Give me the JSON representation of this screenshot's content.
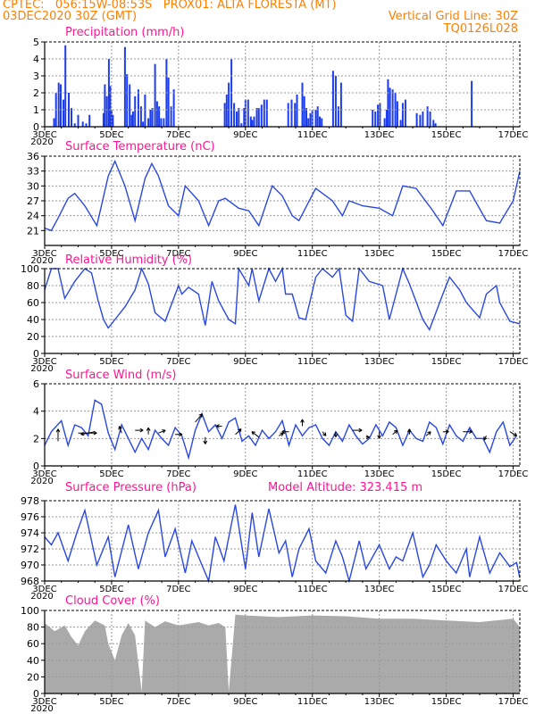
{
  "header": {
    "line1": "CPTEC:   056:15W-08:53S   PROX01: ALTA FLORESTA (MT)",
    "line2": "03DEC2020 30Z (GMT)",
    "grid_note": "Vertical Grid Line: 30Z",
    "code": "TQ0126L028"
  },
  "colors": {
    "header": "#ff7f00",
    "title": "#ff1493",
    "line": "#2a48e0",
    "bar": "#1c3cf0",
    "cloud": "#aaaaaa",
    "grid": "#999999",
    "axis": "#000000"
  },
  "x_tick_labels": [
    "3DEC",
    "5DEC",
    "7DEC",
    "9DEC",
    "11DEC",
    "13DEC",
    "15DEC",
    "17DEC"
  ],
  "overlap_label": "2020",
  "chart_data": [
    {
      "type": "bar",
      "title": "Precipitation (mm/h)",
      "ylim": [
        0,
        5
      ],
      "y_ticks": [
        "0",
        "1",
        "2",
        "3",
        "4",
        "5"
      ],
      "x": [
        0.14,
        0.17,
        0.21,
        0.24,
        0.28,
        0.31,
        0.36,
        0.4,
        0.45,
        0.5,
        0.57,
        0.62,
        0.67,
        0.88,
        0.9,
        0.93,
        0.96,
        0.98,
        1.0,
        1.02,
        1.2,
        1.23,
        1.27,
        1.3,
        1.32,
        1.35,
        1.4,
        1.44,
        1.47,
        1.5,
        1.55,
        1.58,
        1.61,
        1.65,
        1.68,
        1.71,
        1.74,
        1.78,
        1.82,
        1.85,
        1.89,
        1.93,
        2.69,
        2.72,
        2.75,
        2.79,
        2.83,
        2.87,
        2.9,
        2.94,
        2.98,
        3.0,
        3.04,
        3.08,
        3.1,
        3.13,
        3.17,
        3.2,
        3.24,
        3.28,
        3.32,
        3.64,
        3.69,
        3.74,
        3.77,
        3.85,
        3.88,
        3.91,
        3.94,
        3.97,
        4.0,
        4.05,
        4.08,
        4.11,
        4.14,
        4.31,
        4.35,
        4.39,
        4.43,
        4.9,
        4.94,
        4.98,
        5.01,
        5.08,
        5.11,
        5.13,
        5.16,
        5.2,
        5.24,
        5.27,
        5.32,
        5.35,
        5.39,
        5.56,
        5.61,
        5.65,
        5.72,
        5.76,
        5.81,
        5.84,
        6.38
      ],
      "values": [
        0.5,
        2.0,
        2.6,
        2.5,
        1.6,
        4.8,
        2.0,
        1.1,
        0.2,
        0.7,
        0.3,
        0.2,
        0.7,
        0.8,
        2.5,
        1.8,
        4.0,
        2.4,
        1.0,
        0.7,
        4.7,
        3.1,
        2.5,
        0.7,
        0.9,
        1.8,
        2.2,
        1.2,
        0.3,
        1.9,
        0.5,
        1.0,
        1.1,
        3.7,
        1.5,
        1.2,
        0.5,
        0.5,
        4.0,
        2.9,
        1.2,
        2.2,
        1.4,
        1.9,
        2.6,
        4.0,
        1.4,
        0.9,
        1.1,
        0.2,
        1.1,
        1.6,
        1.6,
        0.6,
        0.4,
        0.6,
        1.1,
        1.1,
        1.3,
        1.6,
        1.6,
        1.4,
        1.6,
        1.4,
        1.9,
        2.6,
        1.8,
        1.1,
        0.5,
        0.8,
        1.0,
        1.0,
        1.2,
        0.6,
        0.5,
        3.3,
        3.0,
        1.2,
        2.6,
        1.0,
        0.9,
        1.3,
        1.4,
        0.5,
        1.0,
        2.8,
        2.3,
        2.2,
        2.0,
        1.5,
        0.4,
        1.4,
        1.6,
        0.8,
        0.7,
        0.9,
        1.2,
        0.9,
        0.4,
        0.2,
        2.7
      ]
    },
    {
      "type": "line",
      "title": "Surface Temperature (nC)",
      "ylim": [
        18,
        36
      ],
      "y_ticks": [
        "21",
        "24",
        "27",
        "30",
        "33",
        "36"
      ],
      "x": [
        0.0,
        0.1,
        0.2,
        0.35,
        0.45,
        0.6,
        0.78,
        0.95,
        1.05,
        1.2,
        1.35,
        1.5,
        1.6,
        1.7,
        1.85,
        2.0,
        2.1,
        2.3,
        2.45,
        2.6,
        2.7,
        2.9,
        3.05,
        3.2,
        3.4,
        3.55,
        3.7,
        3.8,
        4.05,
        4.3,
        4.45,
        4.55,
        4.75,
        5.0,
        5.2,
        5.35,
        5.55,
        5.8,
        5.95,
        6.15,
        6.35,
        6.6,
        6.8,
        7.0,
        7.1
      ],
      "values": [
        21.5,
        21,
        23.5,
        27.5,
        28.5,
        26,
        22,
        32,
        35,
        30,
        23,
        31.5,
        34.5,
        32,
        26,
        24,
        30,
        27,
        22,
        27,
        27.5,
        25.5,
        25,
        22,
        30,
        28,
        24,
        23,
        29.5,
        27,
        24,
        27,
        26,
        25.5,
        24,
        30,
        29.5,
        25,
        22,
        29,
        29,
        23,
        22.5,
        27,
        33
      ]
    },
    {
      "type": "line",
      "title": "Relative Humidity (%)",
      "ylim": [
        0,
        100
      ],
      "y_ticks": [
        "0",
        "20",
        "40",
        "60",
        "80",
        "100"
      ],
      "x": [
        0.0,
        0.1,
        0.2,
        0.3,
        0.45,
        0.6,
        0.7,
        0.8,
        0.88,
        0.95,
        1.05,
        1.2,
        1.35,
        1.45,
        1.55,
        1.65,
        1.8,
        2.0,
        2.05,
        2.15,
        2.3,
        2.4,
        2.5,
        2.6,
        2.75,
        2.85,
        2.9,
        3.05,
        3.1,
        3.2,
        3.35,
        3.45,
        3.55,
        3.6,
        3.7,
        3.8,
        3.9,
        4.05,
        4.15,
        4.3,
        4.4,
        4.5,
        4.6,
        4.7,
        4.85,
        5.05,
        5.15,
        5.35,
        5.45,
        5.65,
        5.75,
        5.95,
        6.05,
        6.2,
        6.3,
        6.5,
        6.6,
        6.75,
        6.8,
        6.95,
        7.1
      ],
      "values": [
        75,
        100,
        100,
        65,
        85,
        100,
        95,
        62,
        40,
        30,
        40,
        55,
        75,
        100,
        82,
        48,
        38,
        80,
        70,
        78,
        70,
        33,
        85,
        62,
        40,
        35,
        100,
        80,
        100,
        62,
        100,
        85,
        100,
        70,
        70,
        42,
        40,
        90,
        100,
        90,
        100,
        45,
        38,
        100,
        85,
        80,
        40,
        100,
        82,
        40,
        28,
        70,
        90,
        75,
        60,
        42,
        70,
        80,
        60,
        38,
        35
      ]
    },
    {
      "type": "line",
      "title": "Surface Wind (m/s)",
      "ylim": [
        0,
        6
      ],
      "y_ticks": [
        "0",
        "2",
        "4",
        "6"
      ],
      "x": [
        0.0,
        0.1,
        0.25,
        0.35,
        0.45,
        0.55,
        0.65,
        0.75,
        0.85,
        0.95,
        1.05,
        1.15,
        1.25,
        1.35,
        1.45,
        1.55,
        1.65,
        1.75,
        1.85,
        1.95,
        2.05,
        2.15,
        2.25,
        2.35,
        2.45,
        2.55,
        2.65,
        2.75,
        2.85,
        2.95,
        3.05,
        3.15,
        3.25,
        3.35,
        3.45,
        3.55,
        3.65,
        3.75,
        3.85,
        3.95,
        4.05,
        4.15,
        4.25,
        4.35,
        4.45,
        4.55,
        4.65,
        4.75,
        4.85,
        4.95,
        5.05,
        5.15,
        5.25,
        5.35,
        5.45,
        5.55,
        5.65,
        5.75,
        5.85,
        5.95,
        6.05,
        6.15,
        6.25,
        6.35,
        6.45,
        6.55,
        6.65,
        6.75,
        6.85,
        6.95,
        7.05
      ],
      "values": [
        1.5,
        2.5,
        3.3,
        1.5,
        3.0,
        2.8,
        2.2,
        4.8,
        4.5,
        2.4,
        1.2,
        3.0,
        2.0,
        1.0,
        2.0,
        1.2,
        2.6,
        2.0,
        1.5,
        2.8,
        2.2,
        0.6,
        2.6,
        3.8,
        2.5,
        3.0,
        2.0,
        3.2,
        3.5,
        1.8,
        2.2,
        1.5,
        2.6,
        2.0,
        2.5,
        3.3,
        1.5,
        3.0,
        2.2,
        2.8,
        3.0,
        2.0,
        1.5,
        2.5,
        1.8,
        3.0,
        2.2,
        1.6,
        2.0,
        3.0,
        2.2,
        3.2,
        2.8,
        1.5,
        2.6,
        2.0,
        1.8,
        3.2,
        2.8,
        1.6,
        3.0,
        2.2,
        1.8,
        2.8,
        2.0,
        2.0,
        1.0,
        2.5,
        3.2,
        1.5,
        2.2
      ],
      "arrows": [
        {
          "x": 0.2,
          "y": 1.8,
          "dx": 0,
          "dy": 0.9
        },
        {
          "x": 0.5,
          "y": 2.4,
          "dx": 0.8,
          "dy": 0
        },
        {
          "x": 0.75,
          "y": 2.5,
          "dx": -0.6,
          "dy": -0.2
        },
        {
          "x": 1.15,
          "y": 2.4,
          "dx": -0.1,
          "dy": 0.5
        },
        {
          "x": 1.35,
          "y": 2.6,
          "dx": 0.35,
          "dy": 0
        },
        {
          "x": 1.55,
          "y": 2.3,
          "dx": 0,
          "dy": 0.5
        },
        {
          "x": 1.7,
          "y": 2.4,
          "dx": 0.3,
          "dy": 0.2
        },
        {
          "x": 1.95,
          "y": 2.3,
          "dx": 0.3,
          "dy": 0
        },
        {
          "x": 2.25,
          "y": 3.2,
          "dx": 0.3,
          "dy": 0.6
        },
        {
          "x": 2.4,
          "y": 2.1,
          "dx": 0,
          "dy": -0.5
        },
        {
          "x": 2.65,
          "y": 2.9,
          "dx": -0.25,
          "dy": 0
        },
        {
          "x": 2.85,
          "y": 2.3,
          "dx": 0.25,
          "dy": 0.4
        },
        {
          "x": 3.2,
          "y": 2.1,
          "dx": -0.3,
          "dy": 0.4
        },
        {
          "x": 3.5,
          "y": 2.2,
          "dx": 0.2,
          "dy": 0.2
        },
        {
          "x": 3.65,
          "y": 2.5,
          "dx": -0.3,
          "dy": 0
        },
        {
          "x": 3.85,
          "y": 2.9,
          "dx": 0,
          "dy": 0.5
        },
        {
          "x": 4.15,
          "y": 2.5,
          "dx": 0.15,
          "dy": -0.3
        },
        {
          "x": 4.35,
          "y": 2.5,
          "dx": 0,
          "dy": -0.4
        },
        {
          "x": 4.6,
          "y": 2.6,
          "dx": 0.4,
          "dy": 0
        },
        {
          "x": 4.8,
          "y": 2.1,
          "dx": 0.15,
          "dy": 0
        },
        {
          "x": 5.0,
          "y": 2.5,
          "dx": 0,
          "dy": -0.5
        },
        {
          "x": 5.2,
          "y": 2.3,
          "dx": 0.2,
          "dy": 0.3
        },
        {
          "x": 5.45,
          "y": 2.3,
          "dx": 0,
          "dy": 0.4
        },
        {
          "x": 5.7,
          "y": 2.2,
          "dx": 0.2,
          "dy": 0.3
        },
        {
          "x": 5.95,
          "y": 2.5,
          "dx": 0.25,
          "dy": 0
        },
        {
          "x": 6.25,
          "y": 2.5,
          "dx": 0.4,
          "dy": 0
        },
        {
          "x": 6.6,
          "y": 2.2,
          "dx": -0.1,
          "dy": -0.3
        },
        {
          "x": 6.95,
          "y": 2.5,
          "dx": 0.3,
          "dy": -0.3
        }
      ]
    },
    {
      "type": "line",
      "title": "Surface Pressure (hPa)",
      "subtitle": "Model Altitude: 323.415  m",
      "ylim": [
        968,
        978
      ],
      "y_ticks": [
        "968",
        "970",
        "972",
        "974",
        "976",
        "978"
      ],
      "x": [
        0.0,
        0.1,
        0.2,
        0.35,
        0.48,
        0.6,
        0.78,
        0.95,
        1.05,
        1.25,
        1.4,
        1.55,
        1.7,
        1.8,
        1.95,
        2.1,
        2.2,
        2.3,
        2.45,
        2.55,
        2.68,
        2.85,
        3.0,
        3.1,
        3.2,
        3.35,
        3.5,
        3.6,
        3.7,
        3.8,
        3.95,
        4.05,
        4.2,
        4.35,
        4.45,
        4.55,
        4.7,
        4.8,
        5.0,
        5.15,
        5.25,
        5.35,
        5.5,
        5.65,
        5.75,
        5.85,
        6.0,
        6.15,
        6.3,
        6.35,
        6.5,
        6.65,
        6.8,
        6.95,
        7.05,
        7.1
      ],
      "values": [
        973.5,
        972.5,
        974,
        970.5,
        974,
        976.8,
        970,
        973.5,
        968.5,
        975,
        969.5,
        974,
        976.8,
        971,
        974.5,
        969,
        973,
        971,
        968,
        973.5,
        970.5,
        977.5,
        969.5,
        976.5,
        971,
        977,
        971.5,
        973,
        968.5,
        972,
        974.5,
        970.5,
        969,
        973,
        971,
        968,
        973,
        969.5,
        972.5,
        969.5,
        971,
        970.5,
        974,
        968.5,
        970,
        972.5,
        970.5,
        969,
        972,
        968.5,
        973.5,
        969,
        971.5,
        969.8,
        970.3,
        968.4
      ]
    },
    {
      "type": "area",
      "title": "Cloud Cover (%)",
      "ylim": [
        0,
        100
      ],
      "y_ticks": [
        "0",
        "20",
        "40",
        "60",
        "80",
        "100"
      ],
      "x": [
        0.0,
        0.15,
        0.3,
        0.4,
        0.5,
        0.6,
        0.75,
        0.9,
        0.95,
        1.05,
        1.15,
        1.25,
        1.35,
        1.45,
        1.5,
        1.65,
        1.8,
        2.0,
        2.15,
        2.3,
        2.45,
        2.6,
        2.7,
        2.75,
        2.85,
        3.0,
        3.5,
        4.0,
        4.5,
        5.0,
        5.5,
        6.0,
        6.5,
        7.0,
        7.1
      ],
      "values": [
        85,
        75,
        82,
        68,
        58,
        75,
        88,
        82,
        60,
        40,
        70,
        85,
        70,
        2,
        88,
        80,
        87,
        82,
        84,
        86,
        82,
        85,
        80,
        2,
        95,
        94,
        92,
        94,
        93,
        90,
        90,
        88,
        86,
        90,
        80
      ]
    }
  ]
}
